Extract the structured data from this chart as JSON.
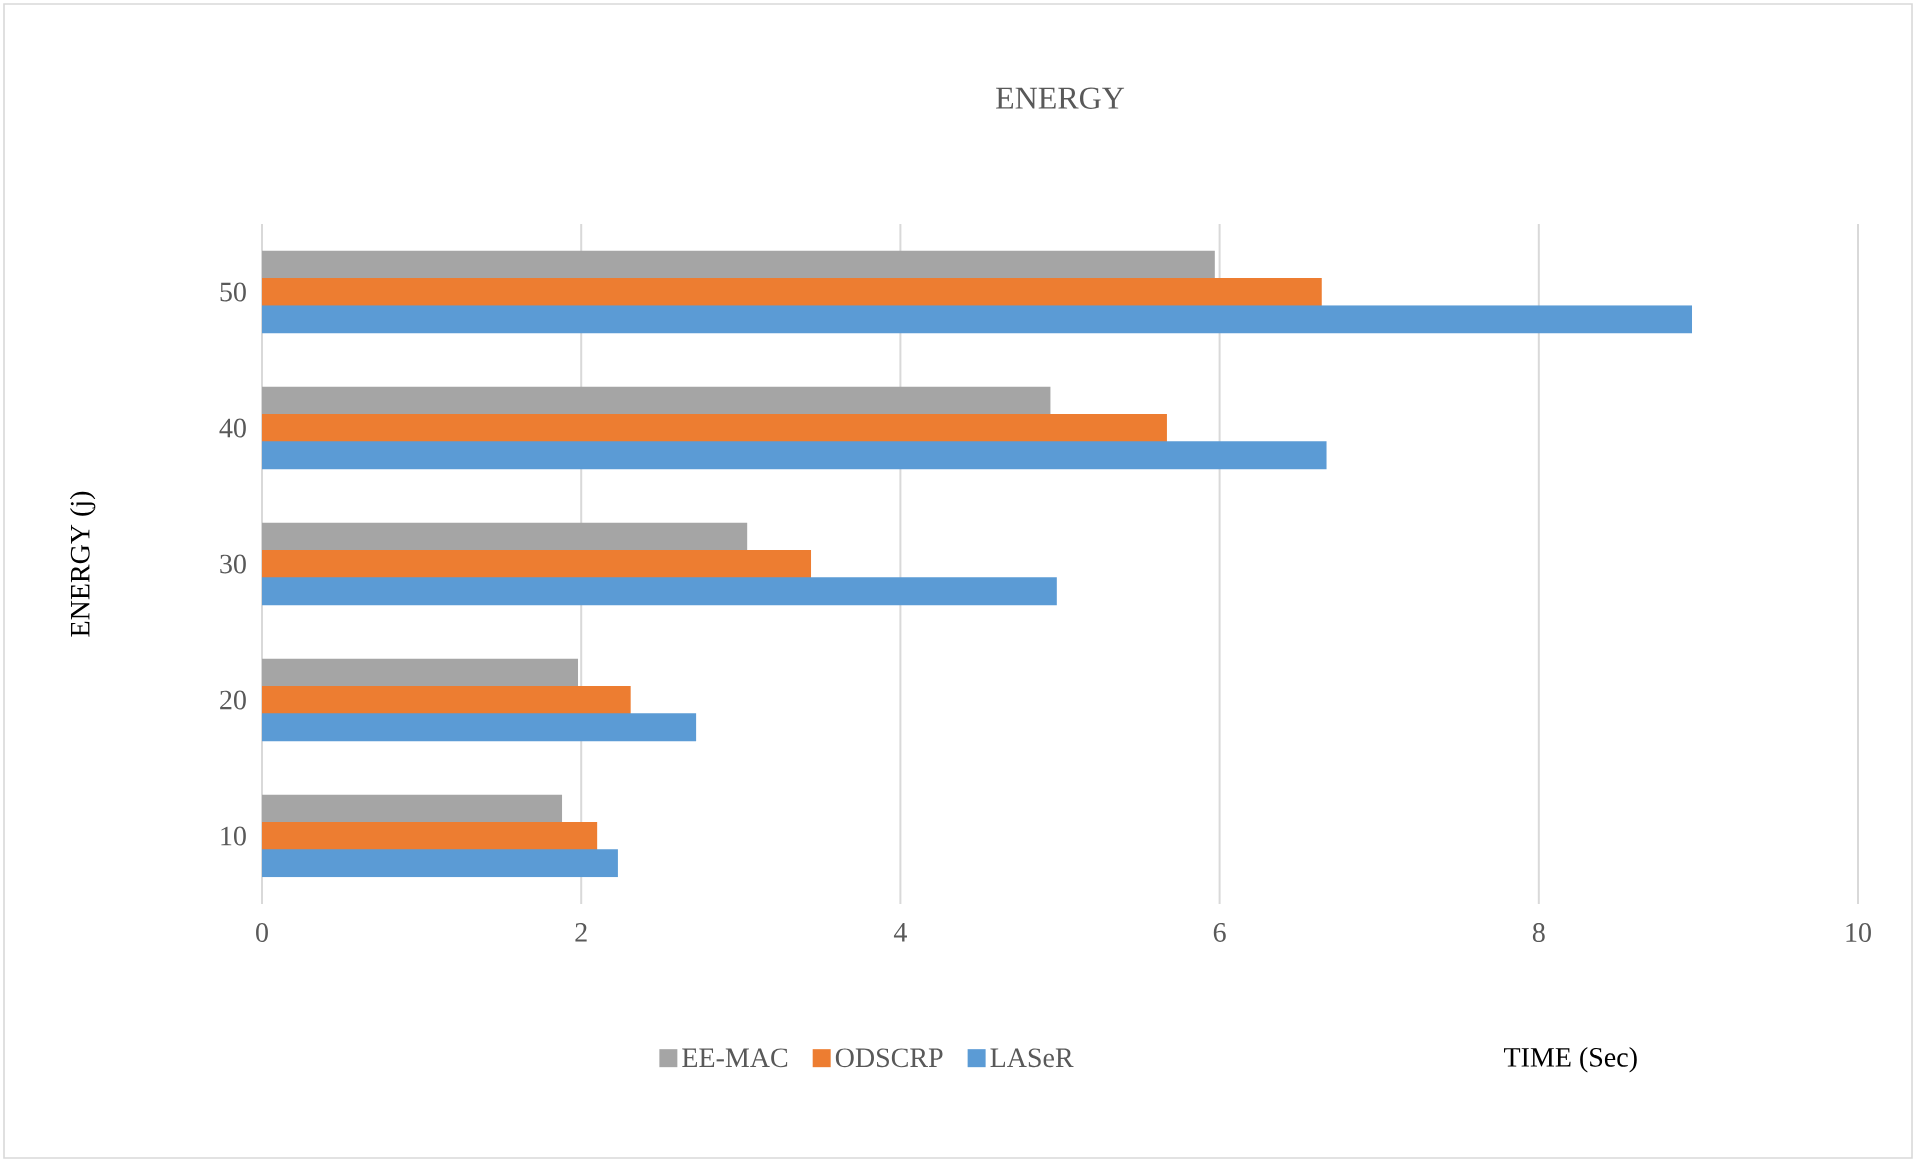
{
  "chart_data": {
    "type": "bar",
    "orientation": "horizontal",
    "title": "ENERGY",
    "xlabel": "TIME (Sec)",
    "ylabel": "ENERGY (j)",
    "categories": [
      "50",
      "40",
      "30",
      "20",
      "10"
    ],
    "series": [
      {
        "name": "EE-MAC",
        "color": "#a5a5a5",
        "values": [
          5.97,
          4.94,
          3.04,
          1.98,
          1.88
        ]
      },
      {
        "name": "ODSCRP",
        "color": "#ed7d31",
        "values": [
          6.64,
          5.67,
          3.44,
          2.31,
          2.1
        ]
      },
      {
        "name": "LASeR",
        "color": "#5b9bd5",
        "values": [
          8.96,
          6.67,
          4.98,
          2.72,
          2.23
        ]
      }
    ],
    "xlim": [
      0,
      10
    ],
    "xticks": [
      0,
      2,
      4,
      6,
      8,
      10
    ],
    "grid": "x",
    "legend": "bottom"
  }
}
